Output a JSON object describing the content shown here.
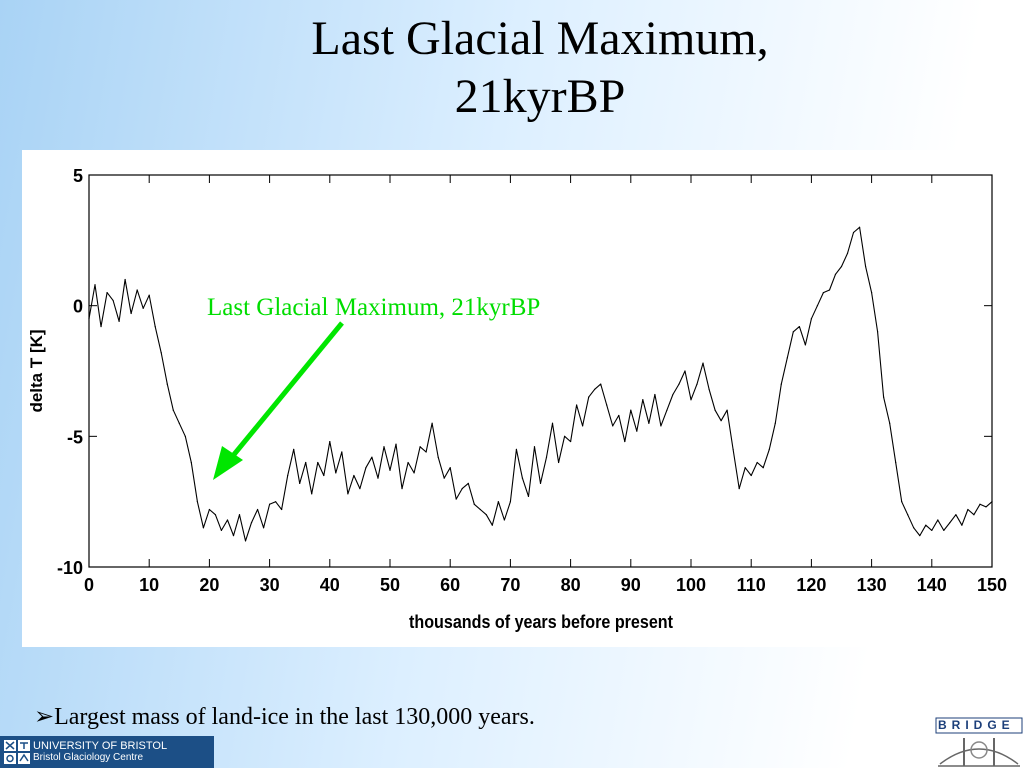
{
  "slide": {
    "title_line1": "Last Glacial Maximum,",
    "title_line2": "21kyrBP",
    "bullet_marker": "➢",
    "bullet_text": "Largest mass of land-ice in the last 130,000 years."
  },
  "footer": {
    "university": "UNIVERSITY OF BRISTOL",
    "centre": "Bristol Glaciology Centre",
    "bridge_logo_text": "BRIDGE",
    "bar_color": "#1c4f86"
  },
  "chart_data": {
    "type": "line",
    "title": "",
    "xlabel": "thousands of years before present",
    "ylabel": "delta T [K]",
    "xlim": [
      0,
      150
    ],
    "ylim": [
      -10,
      5
    ],
    "xticks": [
      0,
      10,
      20,
      30,
      40,
      50,
      60,
      70,
      80,
      90,
      100,
      110,
      120,
      130,
      140,
      150
    ],
    "yticks": [
      5,
      0,
      -5,
      -10
    ],
    "grid": false,
    "line_color": "#000000",
    "annotation": {
      "text": "Last Glacial Maximum, 21kyrBP",
      "color": "#00dd00",
      "points_to": {
        "x": 21,
        "y": -6.7
      }
    },
    "series": [
      {
        "x": [
          0,
          1,
          2,
          3,
          4,
          5,
          6,
          7,
          8,
          9,
          10,
          11,
          12,
          13,
          14,
          15,
          16,
          17,
          18,
          19,
          20,
          21,
          22,
          23,
          24,
          25,
          26,
          27,
          28,
          29,
          30,
          31,
          32,
          33,
          34,
          35,
          36,
          37,
          38,
          39,
          40,
          41,
          42,
          43,
          44,
          45,
          46,
          47,
          48,
          49,
          50,
          51,
          52,
          53,
          54,
          55,
          56,
          57,
          58,
          59,
          60,
          61,
          62,
          63,
          64,
          65,
          66,
          67,
          68,
          69,
          70,
          71,
          72,
          73,
          74,
          75,
          76,
          77,
          78,
          79,
          80,
          81,
          82,
          83,
          84,
          85,
          86,
          87,
          88,
          89,
          90,
          91,
          92,
          93,
          94,
          95,
          96,
          97,
          98,
          99,
          100,
          101,
          102,
          103,
          104,
          105,
          106,
          107,
          108,
          109,
          110,
          111,
          112,
          113,
          114,
          115,
          116,
          117,
          118,
          119,
          120,
          121,
          122,
          123,
          124,
          125,
          126,
          127,
          128,
          129,
          130,
          131,
          132,
          133,
          134,
          135,
          136,
          137,
          138,
          139,
          140,
          141,
          142,
          143,
          144,
          145,
          146,
          147,
          148,
          149,
          150
        ],
        "y": [
          -0.5,
          0.8,
          -0.8,
          0.5,
          0.2,
          -0.6,
          1.0,
          -0.3,
          0.6,
          -0.1,
          0.4,
          -0.8,
          -1.8,
          -3.0,
          -4.0,
          -4.5,
          -5.0,
          -6.0,
          -7.5,
          -8.5,
          -7.8,
          -8.0,
          -8.6,
          -8.2,
          -8.8,
          -8.0,
          -9.0,
          -8.3,
          -7.8,
          -8.5,
          -7.6,
          -7.5,
          -7.8,
          -6.5,
          -5.5,
          -6.8,
          -6.0,
          -7.2,
          -6.0,
          -6.5,
          -5.2,
          -6.4,
          -5.6,
          -7.2,
          -6.5,
          -7.0,
          -6.2,
          -5.8,
          -6.6,
          -5.4,
          -6.3,
          -5.3,
          -7.0,
          -6.0,
          -6.4,
          -5.4,
          -5.6,
          -4.5,
          -5.8,
          -6.6,
          -6.2,
          -7.4,
          -7.0,
          -6.8,
          -7.6,
          -7.8,
          -8.0,
          -8.4,
          -7.5,
          -8.2,
          -7.5,
          -5.5,
          -6.6,
          -7.3,
          -5.4,
          -6.8,
          -5.8,
          -4.5,
          -6.0,
          -5.0,
          -5.2,
          -3.8,
          -4.6,
          -3.5,
          -3.2,
          -3.0,
          -3.8,
          -4.6,
          -4.2,
          -5.2,
          -4.0,
          -4.8,
          -3.6,
          -4.5,
          -3.4,
          -4.6,
          -4.0,
          -3.4,
          -3.0,
          -2.5,
          -3.6,
          -3.0,
          -2.2,
          -3.2,
          -4.0,
          -4.4,
          -4.0,
          -5.5,
          -7.0,
          -6.2,
          -6.5,
          -6.0,
          -6.2,
          -5.5,
          -4.5,
          -3.0,
          -2.0,
          -1.0,
          -0.8,
          -1.5,
          -0.5,
          0.0,
          0.5,
          0.6,
          1.2,
          1.5,
          2.0,
          2.8,
          3.0,
          1.5,
          0.5,
          -1.0,
          -3.5,
          -4.5,
          -6.0,
          -7.5,
          -8.0,
          -8.5,
          -8.8,
          -8.4,
          -8.6,
          -8.2,
          -8.6,
          -8.3,
          -8.0,
          -8.4,
          -7.8,
          -8.0,
          -7.6,
          -7.7,
          -7.5
        ]
      }
    ]
  }
}
